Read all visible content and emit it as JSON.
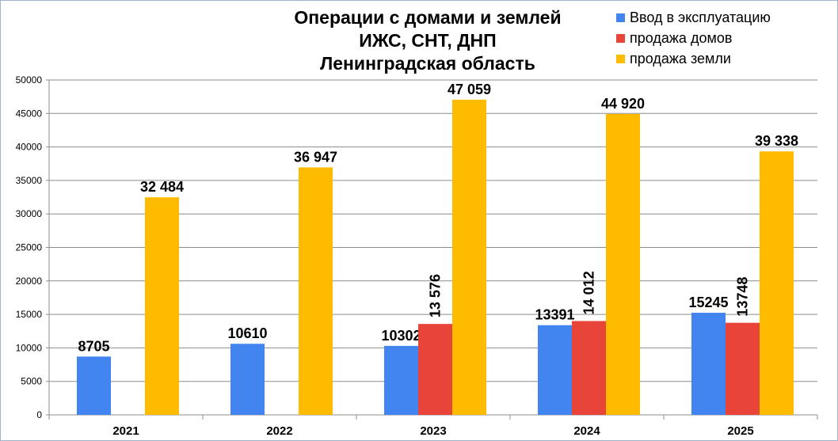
{
  "chart_data": {
    "type": "bar",
    "title_lines": [
      "Операции с домами и землей",
      "ИЖС, СНТ, ДНП",
      "Ленинградская область"
    ],
    "categories": [
      "2021",
      "2022",
      "2023",
      "2024",
      "2025"
    ],
    "series": [
      {
        "name": "Ввод в эксплуатацию",
        "color": "#4285f0",
        "values": [
          8705,
          10610,
          10302,
          13391,
          15245
        ],
        "labels": [
          "8705",
          "10610",
          "10302",
          "13391",
          "15245"
        ]
      },
      {
        "name": "продажа домов",
        "color": "#e8443a",
        "values": [
          null,
          null,
          13576,
          14012,
          13748
        ],
        "labels": [
          "",
          "",
          "13 576",
          "14 012",
          "13748"
        ]
      },
      {
        "name": "продажа земли",
        "color": "#ffbb00",
        "values": [
          32484,
          36947,
          47059,
          44920,
          39338
        ],
        "labels": [
          "32 484",
          "36 947",
          "47 059",
          "44 920",
          "39 338"
        ]
      }
    ],
    "yticks": [
      "0",
      "5000",
      "10000",
      "15000",
      "20000",
      "25000",
      "30000",
      "35000",
      "40000",
      "45000",
      "50000"
    ],
    "ylim": [
      0,
      50000
    ],
    "grid": true,
    "legend_position": "top-right"
  }
}
